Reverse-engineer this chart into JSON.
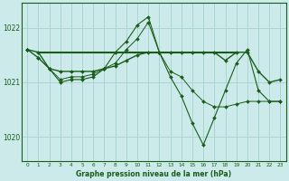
{
  "bg_color": "#cceaea",
  "grid_color": "#aad4d4",
  "line_color": "#1a5c1a",
  "title": "Graphe pression niveau de la mer (hPa)",
  "ylabel_ticks": [
    1020,
    1021,
    1022
  ],
  "xlim": [
    -0.5,
    23.5
  ],
  "ylim": [
    1019.55,
    1022.45
  ],
  "x": [
    0,
    1,
    2,
    3,
    4,
    5,
    6,
    7,
    8,
    9,
    10,
    11,
    12,
    13,
    14,
    15,
    16,
    17,
    18,
    19,
    20,
    21,
    22,
    23
  ],
  "line1": [
    1021.6,
    1021.45,
    1021.25,
    1021.05,
    1021.1,
    1021.1,
    1021.15,
    1021.25,
    1021.35,
    1021.6,
    1021.8,
    1022.1,
    1021.55,
    1021.2,
    1021.1,
    1020.85,
    1020.65,
    1020.55,
    1020.55,
    1020.6,
    1020.65,
    1020.65,
    1020.65,
    1020.65
  ],
  "line2": [
    1021.6,
    1021.55,
    1021.25,
    1021.2,
    1021.2,
    1021.2,
    1021.2,
    1021.25,
    1021.3,
    1021.4,
    1021.5,
    1021.55,
    1021.55,
    1021.55,
    1021.55,
    1021.55,
    1021.55,
    1021.55,
    1021.4,
    1021.55,
    1021.55,
    1021.2,
    1021.0,
    1021.05
  ],
  "line3": [
    1021.6,
    1021.45,
    1021.25,
    1021.0,
    1021.05,
    1021.05,
    1021.1,
    1021.25,
    1021.55,
    1021.75,
    1022.05,
    1022.2,
    1021.55,
    1021.1,
    1020.75,
    1020.25,
    1019.85,
    1020.35,
    1020.85,
    1021.35,
    1021.6,
    1020.85,
    1020.65,
    1020.65
  ],
  "line4_y": 1021.55,
  "line4_x_start": 1,
  "line4_x_end": 19
}
